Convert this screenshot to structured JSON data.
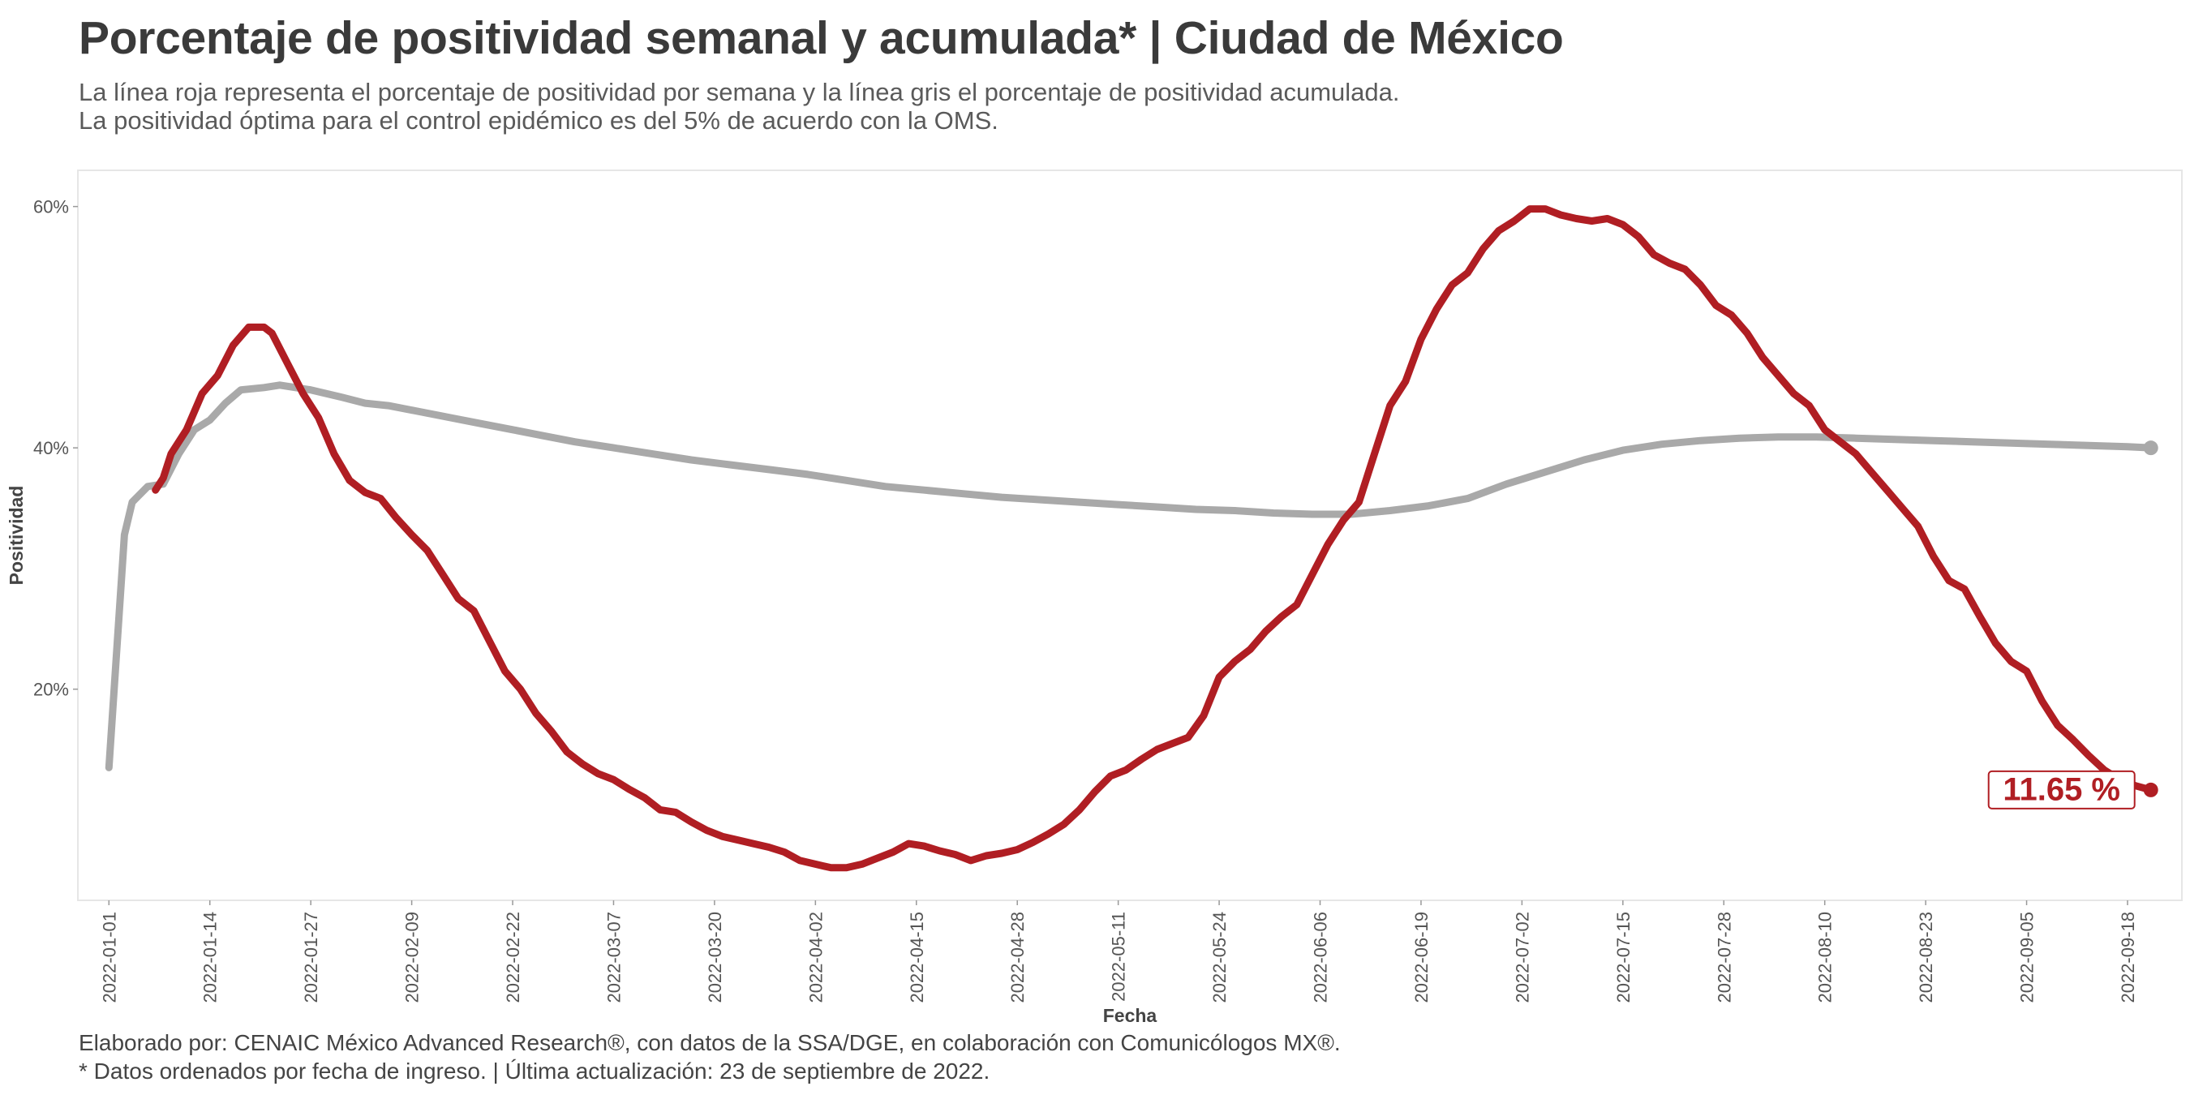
{
  "title": "Porcentaje de positividad semanal y acumulada* | Ciudad de México",
  "subtitle": [
    "La línea roja representa el porcentaje de positividad por semana y la línea gris el porcentaje de positividad acumulada.",
    "La positividad óptima para el control epidémico es del 5% de acuerdo con la OMS."
  ],
  "caption": [
    "Elaborado por: CENAIC México Advanced Research®, con datos de la SSA/DGE, en colaboración con Comunicólogos MX®.",
    "* Datos ordenados por fecha de ingreso. | Última actualización: 23 de septiembre de 2022."
  ],
  "colors": {
    "weekly": "#b01e23",
    "cumulative": "#a9a9a9",
    "panel_border": "#e6e6e6"
  },
  "chart_data": {
    "type": "line",
    "xlabel": "Fecha",
    "ylabel": "Positividad",
    "x_range": [
      "2021-12-28",
      "2022-09-25"
    ],
    "ylim": [
      2.5,
      63
    ],
    "x_ticks": [
      "2022-01-01",
      "2022-01-14",
      "2022-01-27",
      "2022-02-09",
      "2022-02-22",
      "2022-03-07",
      "2022-03-20",
      "2022-04-02",
      "2022-04-15",
      "2022-04-28",
      "2022-05-11",
      "2022-05-24",
      "2022-06-06",
      "2022-06-19",
      "2022-07-02",
      "2022-07-15",
      "2022-07-28",
      "2022-08-10",
      "2022-08-23",
      "2022-09-05",
      "2022-09-18"
    ],
    "y_ticks": [
      20,
      40,
      60
    ],
    "y_tick_labels": [
      "20%",
      "40%",
      "60%"
    ],
    "grid": false,
    "end_label": "11.65 %",
    "series": [
      {
        "key": "weekly",
        "points": [
          [
            "2022-01-07",
            36.5
          ],
          [
            "2022-01-08",
            37.5
          ],
          [
            "2022-01-09",
            39.5
          ],
          [
            "2022-01-11",
            41.5
          ],
          [
            "2022-01-13",
            44.5
          ],
          [
            "2022-01-15",
            46
          ],
          [
            "2022-01-17",
            48.5
          ],
          [
            "2022-01-19",
            50
          ],
          [
            "2022-01-21",
            50
          ],
          [
            "2022-01-22",
            49.5
          ],
          [
            "2022-01-24",
            47
          ],
          [
            "2022-01-26",
            44.5
          ],
          [
            "2022-01-28",
            42.5
          ],
          [
            "2022-01-30",
            39.5
          ],
          [
            "2022-02-01",
            37.3
          ],
          [
            "2022-02-03",
            36.3
          ],
          [
            "2022-02-05",
            35.8
          ],
          [
            "2022-02-07",
            34.2
          ],
          [
            "2022-02-09",
            32.8
          ],
          [
            "2022-02-11",
            31.5
          ],
          [
            "2022-02-13",
            29.5
          ],
          [
            "2022-02-15",
            27.5
          ],
          [
            "2022-02-17",
            26.5
          ],
          [
            "2022-02-19",
            24
          ],
          [
            "2022-02-21",
            21.5
          ],
          [
            "2022-02-23",
            20
          ],
          [
            "2022-02-25",
            18
          ],
          [
            "2022-02-27",
            16.5
          ],
          [
            "2022-03-01",
            14.8
          ],
          [
            "2022-03-03",
            13.8
          ],
          [
            "2022-03-05",
            13
          ],
          [
            "2022-03-07",
            12.5
          ],
          [
            "2022-03-09",
            11.7
          ],
          [
            "2022-03-11",
            11
          ],
          [
            "2022-03-13",
            10
          ],
          [
            "2022-03-15",
            9.8
          ],
          [
            "2022-03-17",
            9
          ],
          [
            "2022-03-19",
            8.3
          ],
          [
            "2022-03-21",
            7.8
          ],
          [
            "2022-03-23",
            7.5
          ],
          [
            "2022-03-25",
            7.2
          ],
          [
            "2022-03-27",
            6.9
          ],
          [
            "2022-03-29",
            6.5
          ],
          [
            "2022-03-31",
            5.8
          ],
          [
            "2022-04-02",
            5.5
          ],
          [
            "2022-04-04",
            5.2
          ],
          [
            "2022-04-06",
            5.2
          ],
          [
            "2022-04-08",
            5.5
          ],
          [
            "2022-04-10",
            6
          ],
          [
            "2022-04-12",
            6.5
          ],
          [
            "2022-04-14",
            7.2
          ],
          [
            "2022-04-16",
            7
          ],
          [
            "2022-04-18",
            6.6
          ],
          [
            "2022-04-20",
            6.3
          ],
          [
            "2022-04-22",
            5.8
          ],
          [
            "2022-04-24",
            6.2
          ],
          [
            "2022-04-26",
            6.4
          ],
          [
            "2022-04-28",
            6.7
          ],
          [
            "2022-04-30",
            7.3
          ],
          [
            "2022-05-02",
            8
          ],
          [
            "2022-05-04",
            8.8
          ],
          [
            "2022-05-06",
            10
          ],
          [
            "2022-05-08",
            11.5
          ],
          [
            "2022-05-10",
            12.8
          ],
          [
            "2022-05-12",
            13.3
          ],
          [
            "2022-05-14",
            14.2
          ],
          [
            "2022-05-16",
            15
          ],
          [
            "2022-05-18",
            15.5
          ],
          [
            "2022-05-20",
            16
          ],
          [
            "2022-05-22",
            17.8
          ],
          [
            "2022-05-24",
            21
          ],
          [
            "2022-05-26",
            22.3
          ],
          [
            "2022-05-28",
            23.3
          ],
          [
            "2022-05-30",
            24.8
          ],
          [
            "2022-06-01",
            26
          ],
          [
            "2022-06-03",
            27
          ],
          [
            "2022-06-05",
            29.5
          ],
          [
            "2022-06-07",
            32
          ],
          [
            "2022-06-09",
            34
          ],
          [
            "2022-06-11",
            35.5
          ],
          [
            "2022-06-13",
            39.5
          ],
          [
            "2022-06-15",
            43.5
          ],
          [
            "2022-06-17",
            45.5
          ],
          [
            "2022-06-19",
            49
          ],
          [
            "2022-06-21",
            51.5
          ],
          [
            "2022-06-23",
            53.5
          ],
          [
            "2022-06-25",
            54.5
          ],
          [
            "2022-06-27",
            56.5
          ],
          [
            "2022-06-29",
            58
          ],
          [
            "2022-07-01",
            58.8
          ],
          [
            "2022-07-03",
            59.8
          ],
          [
            "2022-07-05",
            59.8
          ],
          [
            "2022-07-07",
            59.3
          ],
          [
            "2022-07-09",
            59
          ],
          [
            "2022-07-11",
            58.8
          ],
          [
            "2022-07-13",
            59
          ],
          [
            "2022-07-15",
            58.5
          ],
          [
            "2022-07-17",
            57.5
          ],
          [
            "2022-07-19",
            56
          ],
          [
            "2022-07-21",
            55.3
          ],
          [
            "2022-07-23",
            54.8
          ],
          [
            "2022-07-25",
            53.5
          ],
          [
            "2022-07-27",
            51.8
          ],
          [
            "2022-07-29",
            51
          ],
          [
            "2022-07-31",
            49.5
          ],
          [
            "2022-08-02",
            47.5
          ],
          [
            "2022-08-04",
            46
          ],
          [
            "2022-08-06",
            44.5
          ],
          [
            "2022-08-08",
            43.5
          ],
          [
            "2022-08-10",
            41.5
          ],
          [
            "2022-08-12",
            40.5
          ],
          [
            "2022-08-14",
            39.5
          ],
          [
            "2022-08-16",
            38
          ],
          [
            "2022-08-18",
            36.5
          ],
          [
            "2022-08-20",
            35
          ],
          [
            "2022-08-22",
            33.5
          ],
          [
            "2022-08-24",
            31
          ],
          [
            "2022-08-26",
            29
          ],
          [
            "2022-08-28",
            28.3
          ],
          [
            "2022-08-30",
            26
          ],
          [
            "2022-09-01",
            23.8
          ],
          [
            "2022-09-03",
            22.3
          ],
          [
            "2022-09-05",
            21.5
          ],
          [
            "2022-09-07",
            19
          ],
          [
            "2022-09-09",
            17
          ],
          [
            "2022-09-11",
            15.8
          ],
          [
            "2022-09-13",
            14.5
          ],
          [
            "2022-09-15",
            13.3
          ],
          [
            "2022-09-17",
            12.5
          ],
          [
            "2022-09-19",
            12
          ],
          [
            "2022-09-21",
            11.65
          ]
        ]
      },
      {
        "key": "cumulative",
        "points": [
          [
            "2022-01-01",
            13.5
          ],
          [
            "2022-01-03",
            32.8
          ],
          [
            "2022-01-04",
            35.5
          ],
          [
            "2022-01-06",
            36.8
          ],
          [
            "2022-01-08",
            37
          ],
          [
            "2022-01-10",
            39.5
          ],
          [
            "2022-01-12",
            41.5
          ],
          [
            "2022-01-14",
            42.3
          ],
          [
            "2022-01-16",
            43.7
          ],
          [
            "2022-01-18",
            44.8
          ],
          [
            "2022-01-21",
            45
          ],
          [
            "2022-01-23",
            45.2
          ],
          [
            "2022-01-27",
            44.8
          ],
          [
            "2022-01-31",
            44.2
          ],
          [
            "2022-02-03",
            43.7
          ],
          [
            "2022-02-06",
            43.5
          ],
          [
            "2022-02-10",
            43
          ],
          [
            "2022-02-14",
            42.5
          ],
          [
            "2022-02-18",
            42
          ],
          [
            "2022-02-22",
            41.5
          ],
          [
            "2022-02-26",
            41
          ],
          [
            "2022-03-02",
            40.5
          ],
          [
            "2022-03-07",
            40
          ],
          [
            "2022-03-12",
            39.5
          ],
          [
            "2022-03-17",
            39
          ],
          [
            "2022-03-22",
            38.6
          ],
          [
            "2022-03-27",
            38.2
          ],
          [
            "2022-04-01",
            37.8
          ],
          [
            "2022-04-06",
            37.3
          ],
          [
            "2022-04-11",
            36.8
          ],
          [
            "2022-04-16",
            36.5
          ],
          [
            "2022-04-21",
            36.2
          ],
          [
            "2022-04-26",
            35.9
          ],
          [
            "2022-05-01",
            35.7
          ],
          [
            "2022-05-06",
            35.5
          ],
          [
            "2022-05-11",
            35.3
          ],
          [
            "2022-05-16",
            35.1
          ],
          [
            "2022-05-21",
            34.9
          ],
          [
            "2022-05-26",
            34.8
          ],
          [
            "2022-05-31",
            34.6
          ],
          [
            "2022-06-05",
            34.5
          ],
          [
            "2022-06-10",
            34.5
          ],
          [
            "2022-06-15",
            34.8
          ],
          [
            "2022-06-20",
            35.2
          ],
          [
            "2022-06-25",
            35.8
          ],
          [
            "2022-06-30",
            37
          ],
          [
            "2022-07-05",
            38
          ],
          [
            "2022-07-10",
            39
          ],
          [
            "2022-07-15",
            39.8
          ],
          [
            "2022-07-20",
            40.3
          ],
          [
            "2022-07-25",
            40.6
          ],
          [
            "2022-07-30",
            40.8
          ],
          [
            "2022-08-04",
            40.9
          ],
          [
            "2022-08-09",
            40.9
          ],
          [
            "2022-08-14",
            40.8
          ],
          [
            "2022-08-19",
            40.7
          ],
          [
            "2022-08-24",
            40.6
          ],
          [
            "2022-08-29",
            40.5
          ],
          [
            "2022-09-03",
            40.4
          ],
          [
            "2022-09-08",
            40.3
          ],
          [
            "2022-09-13",
            40.2
          ],
          [
            "2022-09-18",
            40.1
          ],
          [
            "2022-09-21",
            40
          ]
        ]
      }
    ]
  }
}
